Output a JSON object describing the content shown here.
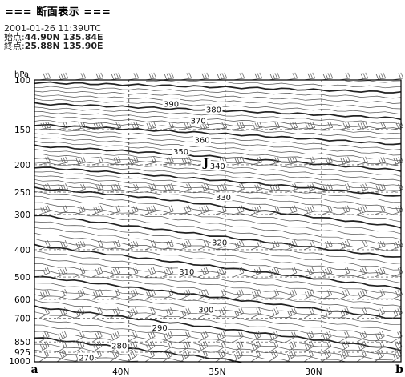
{
  "header": {
    "title": "=== 断面表示 ===",
    "datetime": "2001-01-26 11:39UTC",
    "start_label": "始点:",
    "start_value": "44.90N 135.84E",
    "end_label": "終点:",
    "end_value": "25.88N 135.90E"
  },
  "chart_data": {
    "type": "cross-section contour",
    "ylabel": "hPa",
    "y_scale": "log",
    "pressure_levels": [
      100,
      150,
      200,
      250,
      300,
      400,
      500,
      600,
      700,
      850,
      925,
      1000
    ],
    "x_ticks": [
      "40N",
      "35N",
      "30N"
    ],
    "x_ticks_lat": [
      40,
      35,
      30
    ],
    "x_range_lat": [
      44.9,
      25.88
    ],
    "endpoint_labels": [
      "a",
      "b"
    ],
    "jet_marker": "J",
    "jet_position": {
      "lat": 36.0,
      "pressure": 200
    },
    "bold_contour_step": 10,
    "thin_contour_step": 2,
    "contour_labels": [
      {
        "value": 390,
        "lat": 37.8,
        "pressure": 122
      },
      {
        "value": 380,
        "lat": 35.6,
        "pressure": 128
      },
      {
        "value": 370,
        "lat": 36.4,
        "pressure": 140
      },
      {
        "value": 360,
        "lat": 36.2,
        "pressure": 164
      },
      {
        "value": 350,
        "lat": 37.3,
        "pressure": 180
      },
      {
        "value": 340,
        "lat": 35.4,
        "pressure": 203
      },
      {
        "value": 330,
        "lat": 35.1,
        "pressure": 262
      },
      {
        "value": 320,
        "lat": 35.3,
        "pressure": 378
      },
      {
        "value": 310,
        "lat": 37.0,
        "pressure": 480
      },
      {
        "value": 300,
        "lat": 36.0,
        "pressure": 655
      },
      {
        "value": 290,
        "lat": 38.4,
        "pressure": 760
      },
      {
        "value": 280,
        "lat": 40.5,
        "pressure": 880
      },
      {
        "value": 270,
        "lat": 42.2,
        "pressure": 970
      }
    ]
  }
}
